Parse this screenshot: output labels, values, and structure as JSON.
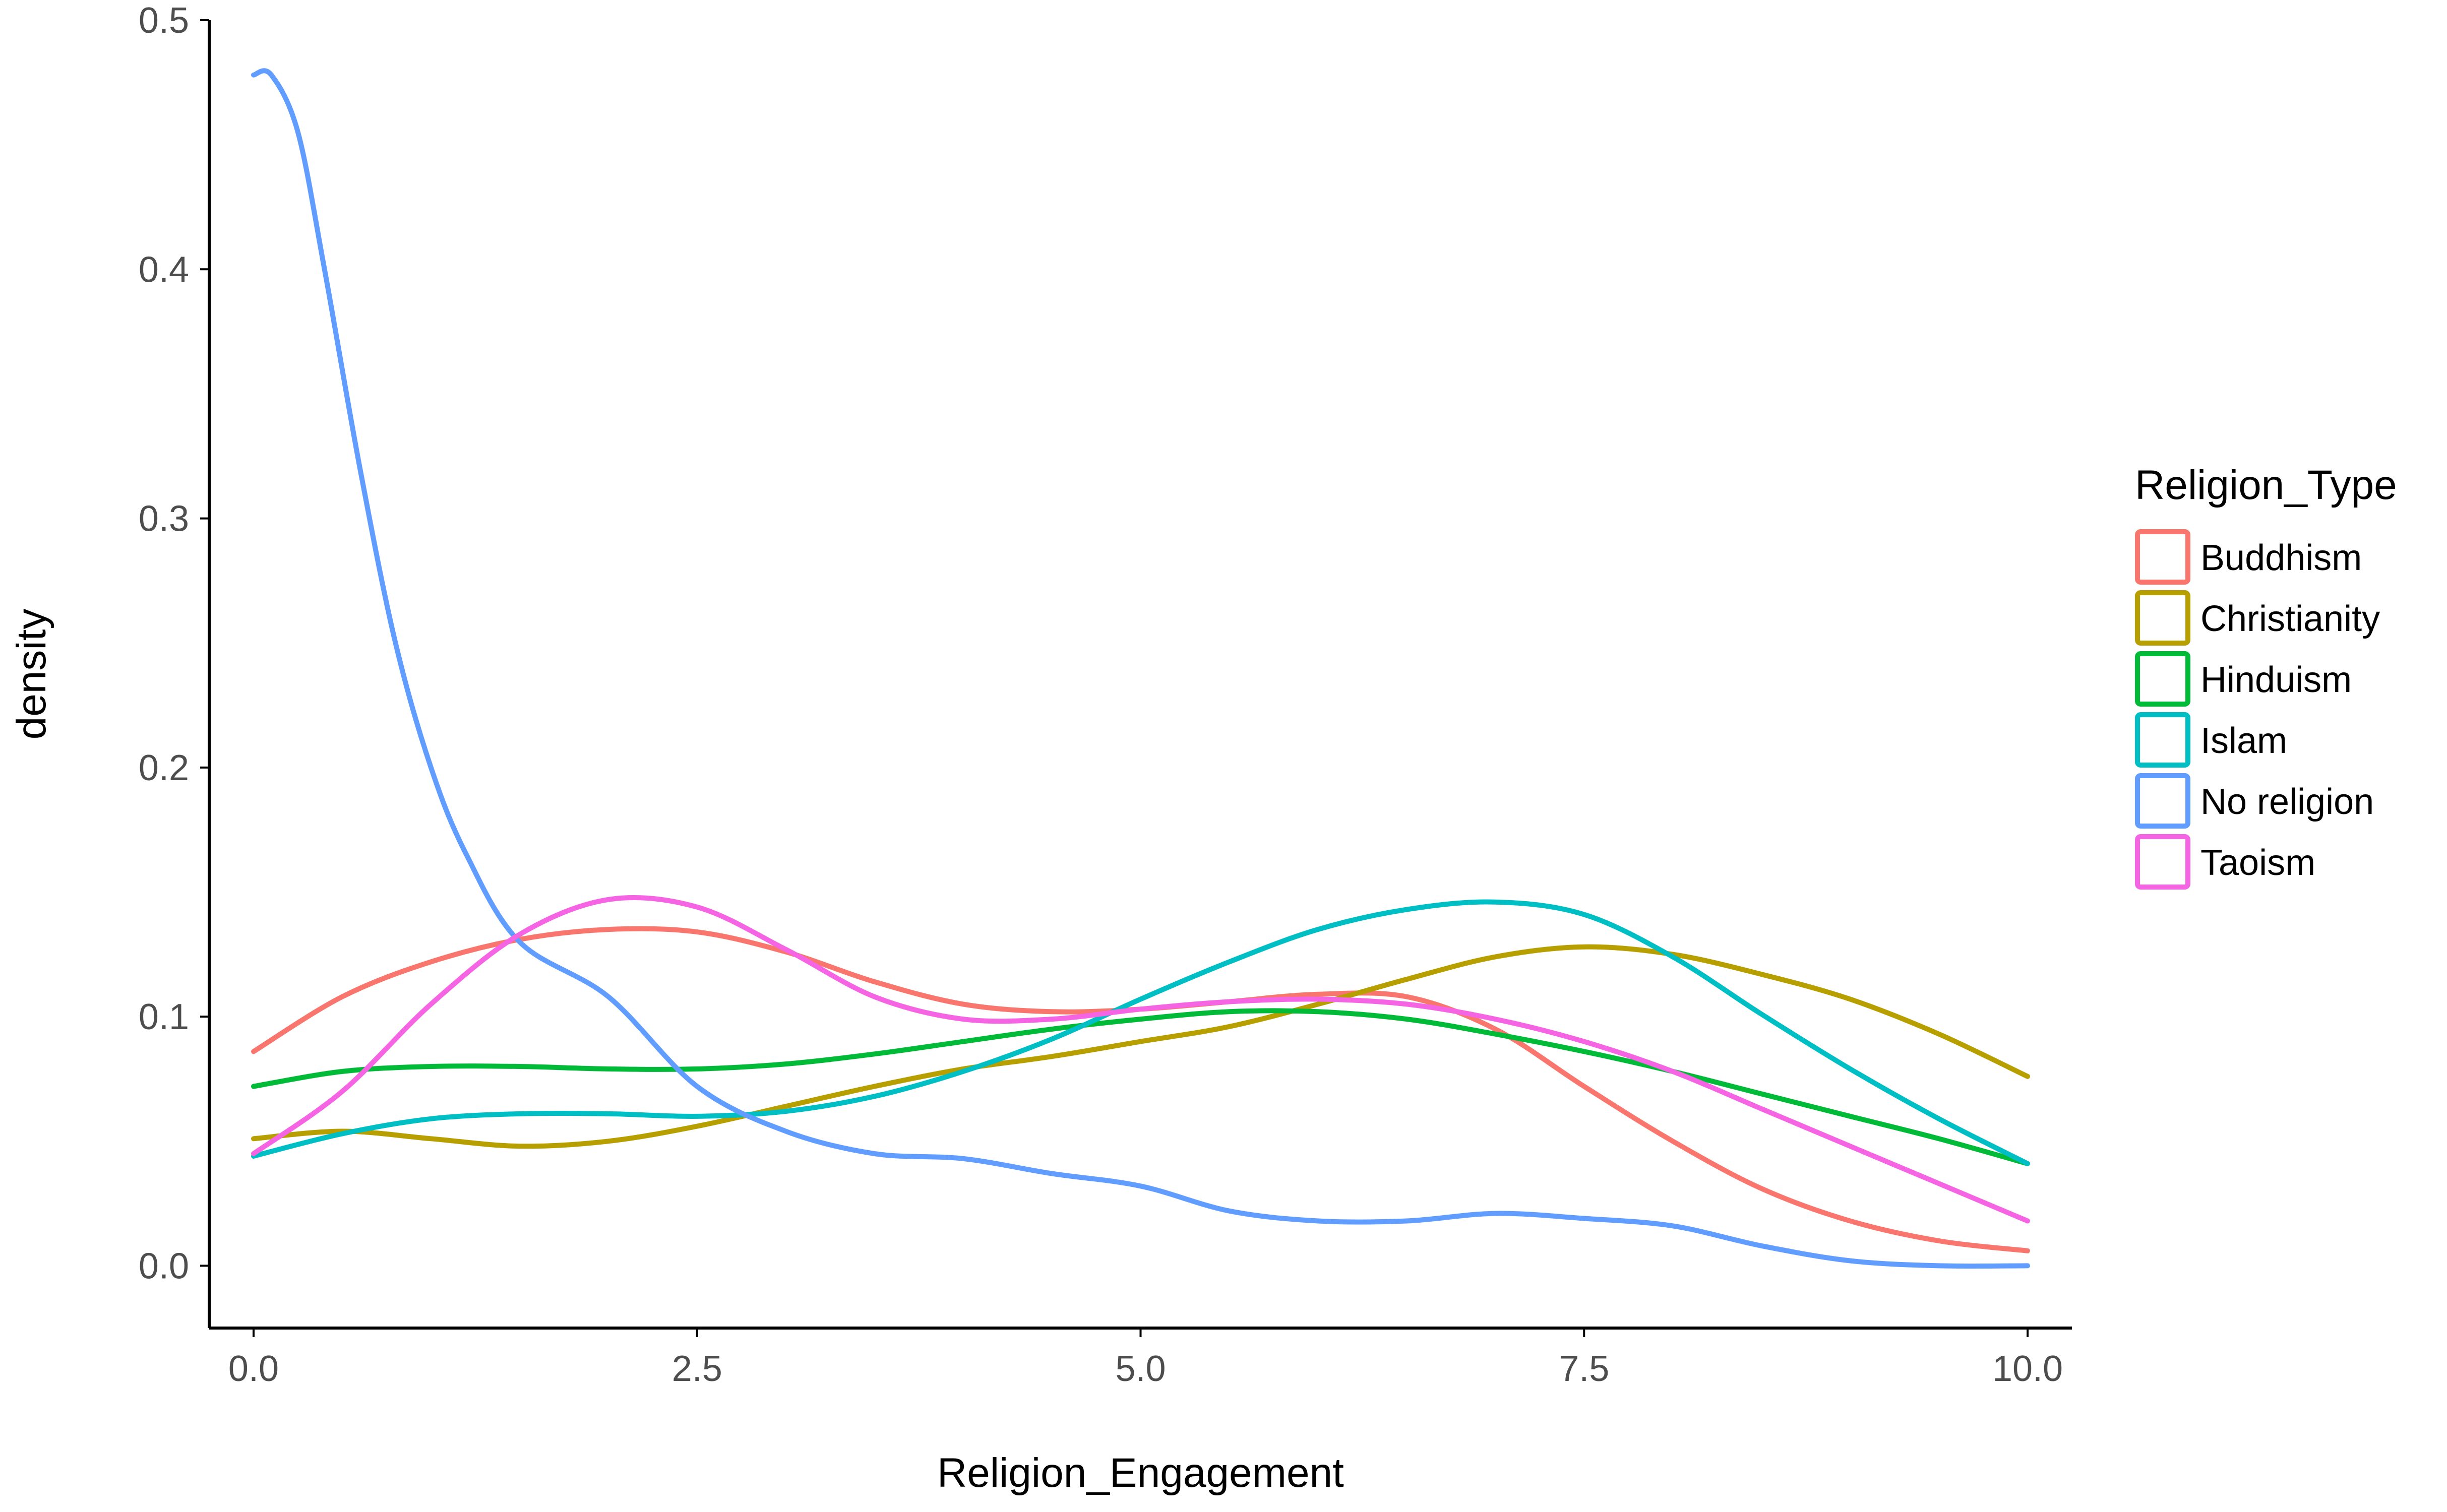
{
  "chart_data": {
    "type": "line",
    "xlabel": "Religion_Engagement",
    "ylabel": "density",
    "xlim": [
      -0.25,
      10.25
    ],
    "ylim": [
      -0.025,
      0.5
    ],
    "x_ticks": [
      "0.0",
      "2.5",
      "5.0",
      "7.5",
      "10.0"
    ],
    "y_ticks": [
      "0.0",
      "0.1",
      "0.2",
      "0.3",
      "0.4",
      "0.5"
    ],
    "grid": false,
    "legend": {
      "title": "Religion_Type",
      "placement": "right"
    },
    "series": [
      {
        "name": "Buddhism",
        "color": "#F8766D",
        "x": [
          0,
          0.5,
          1,
          1.5,
          2,
          2.5,
          3,
          3.5,
          4,
          4.5,
          5,
          5.5,
          6,
          6.5,
          7,
          7.5,
          8,
          8.5,
          9,
          9.5,
          10
        ],
        "y": [
          0.086,
          0.108,
          0.122,
          0.131,
          0.135,
          0.134,
          0.126,
          0.114,
          0.105,
          0.102,
          0.103,
          0.106,
          0.109,
          0.108,
          0.095,
          0.072,
          0.05,
          0.031,
          0.018,
          0.01,
          0.006
        ]
      },
      {
        "name": "Christianity",
        "color": "#B79F00",
        "x": [
          0,
          0.5,
          1,
          1.5,
          2,
          2.5,
          3,
          3.5,
          4,
          4.5,
          5,
          5.5,
          6,
          6.5,
          7,
          7.5,
          8,
          8.5,
          9,
          9.5,
          10
        ],
        "y": [
          0.051,
          0.054,
          0.051,
          0.048,
          0.05,
          0.056,
          0.064,
          0.072,
          0.079,
          0.084,
          0.09,
          0.096,
          0.105,
          0.115,
          0.124,
          0.128,
          0.125,
          0.117,
          0.107,
          0.093,
          0.076
        ]
      },
      {
        "name": "Hinduism",
        "color": "#00BA38",
        "x": [
          0,
          0.5,
          1,
          1.5,
          2,
          2.5,
          3,
          3.5,
          4,
          4.5,
          5,
          5.5,
          6,
          6.5,
          7,
          7.5,
          8,
          8.5,
          9,
          9.5,
          10
        ],
        "y": [
          0.072,
          0.078,
          0.08,
          0.08,
          0.079,
          0.079,
          0.081,
          0.085,
          0.09,
          0.095,
          0.099,
          0.102,
          0.102,
          0.099,
          0.093,
          0.086,
          0.078,
          0.069,
          0.06,
          0.051,
          0.041
        ]
      },
      {
        "name": "Islam",
        "color": "#00BFC4",
        "x": [
          0,
          0.5,
          1,
          1.5,
          2,
          2.5,
          3,
          3.5,
          4,
          4.5,
          5,
          5.5,
          6,
          6.5,
          7,
          7.5,
          8,
          8.5,
          9,
          9.5,
          10
        ],
        "y": [
          0.044,
          0.053,
          0.059,
          0.061,
          0.061,
          0.06,
          0.062,
          0.068,
          0.078,
          0.091,
          0.107,
          0.122,
          0.135,
          0.143,
          0.146,
          0.141,
          0.124,
          0.101,
          0.079,
          0.059,
          0.041
        ]
      },
      {
        "name": "No religion",
        "color": "#619CFF",
        "x": [
          0,
          0.1,
          0.25,
          0.4,
          0.6,
          0.8,
          1,
          1.2,
          1.5,
          2,
          2.5,
          3,
          3.5,
          4,
          4.5,
          5,
          5.5,
          6,
          6.5,
          7,
          7.5,
          8,
          8.5,
          9,
          9.5,
          10
        ],
        "y": [
          0.478,
          0.478,
          0.455,
          0.4,
          0.32,
          0.25,
          0.2,
          0.165,
          0.13,
          0.108,
          0.072,
          0.054,
          0.045,
          0.043,
          0.037,
          0.032,
          0.022,
          0.018,
          0.018,
          0.021,
          0.019,
          0.016,
          0.008,
          0.002,
          0.0,
          0.0
        ]
      },
      {
        "name": "Taoism",
        "color": "#F564E3",
        "x": [
          0,
          0.5,
          1,
          1.5,
          2,
          2.5,
          3,
          3.5,
          4,
          4.5,
          5,
          5.5,
          6,
          6.5,
          7,
          7.5,
          8,
          8.5,
          9,
          9.5,
          10
        ],
        "y": [
          0.045,
          0.07,
          0.105,
          0.133,
          0.147,
          0.144,
          0.127,
          0.108,
          0.099,
          0.099,
          0.103,
          0.106,
          0.107,
          0.105,
          0.099,
          0.09,
          0.078,
          0.063,
          0.048,
          0.033,
          0.018
        ]
      }
    ]
  }
}
